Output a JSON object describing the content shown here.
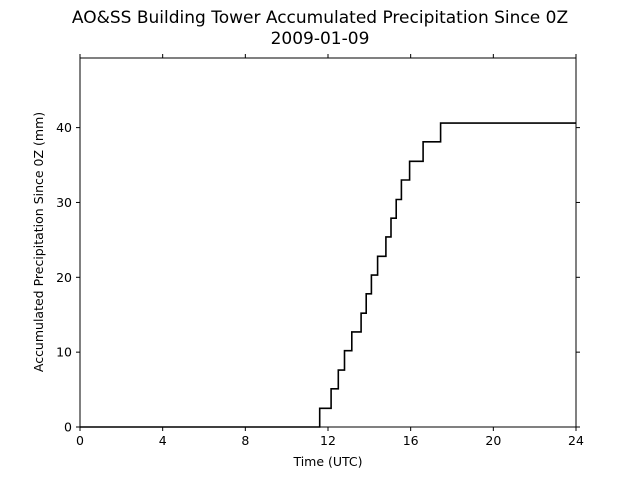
{
  "chart_data": {
    "type": "line",
    "title": "AO&SS Building Tower Accumulated Precipitation Since 0Z",
    "subtitle": "2009-01-09",
    "xlabel": "Time (UTC)",
    "ylabel": "Accumulated Precipitation Since 0Z (mm)",
    "xlim": [
      0,
      24
    ],
    "ylim": [
      0,
      49.3
    ],
    "xticks": [
      0,
      4,
      8,
      12,
      16,
      20,
      24
    ],
    "yticks": [
      0,
      10,
      20,
      30,
      40
    ],
    "grid": false,
    "legend": "none",
    "line_color": "#000000",
    "step": "post",
    "series": [
      {
        "x": [
          0,
          11.6,
          12.15,
          12.5,
          12.8,
          13.15,
          13.6,
          13.85,
          14.1,
          14.4,
          14.8,
          15.05,
          15.3,
          15.55,
          15.95,
          16.6,
          17.45,
          24
        ],
        "y": [
          0,
          2.5,
          5.1,
          7.6,
          10.2,
          12.7,
          15.2,
          17.8,
          20.3,
          22.8,
          25.4,
          27.9,
          30.4,
          33.0,
          35.5,
          38.1,
          40.6,
          40.6
        ]
      }
    ]
  }
}
